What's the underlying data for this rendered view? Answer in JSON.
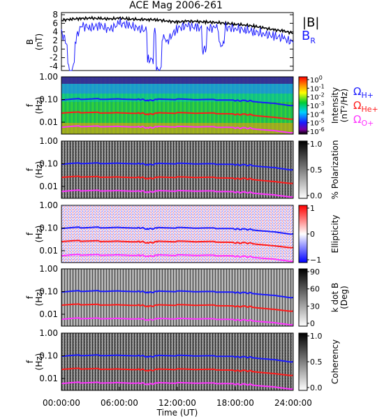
{
  "figure": {
    "title": "ACE Mag 2006-261",
    "xlabel": "Time (UT)",
    "xticks": [
      "00:00:00",
      "06:00:00",
      "12:00:00",
      "18:00:00",
      "24:00:00"
    ]
  },
  "legend": {
    "b_total": "|B|",
    "b_r_main": "B",
    "b_r_sub": "R",
    "omega": "Ω",
    "h_sub": "H+",
    "he_sub": "He+",
    "o_sub": "O+"
  },
  "colors": {
    "b_total": "#000000",
    "b_r": "#1a1aff",
    "omega_h": "#1a1aff",
    "omega_he": "#ff1a1a",
    "omega_o": "#ff33ff"
  },
  "chart_data": [
    {
      "type": "line",
      "ylabel_main": "B",
      "ylabel_sub": "(nT)",
      "x_range_hours": [
        0,
        24
      ],
      "ylim": [
        -5,
        8.5
      ],
      "yticks": [
        "8",
        "6",
        "4",
        "2",
        "0",
        "-2",
        "-4"
      ],
      "yticks_values": [
        8,
        6,
        4,
        2,
        0,
        -2,
        -4
      ],
      "series": [
        {
          "name": "|B|",
          "x": [
            0,
            1,
            2,
            3,
            4,
            5,
            6,
            7,
            8,
            9,
            10,
            11,
            12,
            13,
            14,
            15,
            16,
            17,
            18,
            19,
            20,
            21,
            22,
            23,
            24
          ],
          "values": [
            6.7,
            7.0,
            7.1,
            7.2,
            7.1,
            7.0,
            7.2,
            7.0,
            6.9,
            6.9,
            6.8,
            6.5,
            6.3,
            6.5,
            6.4,
            6.3,
            6.2,
            6.0,
            5.8,
            5.6,
            5.3,
            4.9,
            4.5,
            4.2,
            3.7
          ]
        },
        {
          "name": "B_R",
          "x": [
            0,
            1,
            2,
            3,
            4,
            5,
            6,
            7,
            8,
            9,
            10,
            11,
            12,
            13,
            14,
            15,
            16,
            17,
            18,
            19,
            20,
            21,
            22,
            23,
            24
          ],
          "values": [
            4.0,
            -1.0,
            5.5,
            5.0,
            5.5,
            4.5,
            6.0,
            5.5,
            4.8,
            4.2,
            3.5,
            2.0,
            4.8,
            5.5,
            5.0,
            4.8,
            5.0,
            5.0,
            4.8,
            4.5,
            4.0,
            3.5,
            3.0,
            2.5,
            1.5
          ]
        }
      ]
    },
    {
      "type": "heatmap",
      "ylabel_main": "f",
      "ylabel_sub": "(Hz)",
      "ylim": [
        0.003,
        1.0
      ],
      "yscale": "log",
      "yticks": [
        "1.00",
        "0.10",
        "0.01"
      ],
      "yticks_values": [
        1.0,
        0.1,
        0.01
      ],
      "colorbar": {
        "label_main": "Intensity",
        "label_sub": "(nT²/Hz)",
        "ticks_base": [
          "10",
          "10",
          "10",
          "10",
          "10",
          "10",
          "10"
        ],
        "ticks_exp": [
          "0",
          "-1",
          "-2",
          "-3",
          "-4",
          "-5",
          "-6"
        ],
        "ticks_values": [
          1,
          0.1,
          0.01,
          0.001,
          0.0001,
          1e-05,
          1e-06
        ],
        "colormap": "rainbow"
      }
    },
    {
      "type": "heatmap",
      "ylabel_main": "f",
      "ylabel_sub": "(Hz)",
      "ylim": [
        0.003,
        1.0
      ],
      "yscale": "log",
      "yticks": [
        "1.00",
        "0.10",
        "0.01"
      ],
      "yticks_values": [
        1.0,
        0.1,
        0.01
      ],
      "colorbar": {
        "label": "% Polarization",
        "ticks": [
          "1.0",
          "0.5",
          "0.0"
        ],
        "ticks_values": [
          1.0,
          0.5,
          0.0
        ],
        "colormap": "gray"
      }
    },
    {
      "type": "heatmap",
      "ylabel_main": "f",
      "ylabel_sub": "(Hz)",
      "ylim": [
        0.003,
        1.0
      ],
      "yscale": "log",
      "yticks": [
        "1.00",
        "0.10",
        "0.01"
      ],
      "yticks_values": [
        1.0,
        0.1,
        0.01
      ],
      "colorbar": {
        "label": "Ellipticity",
        "ticks": [
          "1",
          "0",
          "−1"
        ],
        "ticks_values": [
          1,
          0,
          -1
        ],
        "colormap": "blue-white-red"
      }
    },
    {
      "type": "heatmap",
      "ylabel_main": "f",
      "ylabel_sub": "(Hz)",
      "ylim": [
        0.003,
        1.0
      ],
      "yscale": "log",
      "yticks": [
        "1.00",
        "0.10",
        "0.01"
      ],
      "yticks_values": [
        1.0,
        0.1,
        0.01
      ],
      "colorbar": {
        "label_main": "k dot B",
        "label_sub": "(Deg)",
        "ticks": [
          "90",
          "60",
          "30",
          "0"
        ],
        "ticks_values": [
          90,
          60,
          30,
          0
        ],
        "colormap": "gray"
      }
    },
    {
      "type": "heatmap",
      "ylabel_main": "f",
      "ylabel_sub": "(Hz)",
      "ylim": [
        0.003,
        1.0
      ],
      "yscale": "log",
      "yticks": [
        "1.00",
        "0.10",
        "0.01"
      ],
      "yticks_values": [
        1.0,
        0.1,
        0.01
      ],
      "colorbar": {
        "label": "Coherency",
        "ticks": [
          "1.0",
          "0.5",
          "0.0"
        ],
        "ticks_values": [
          1.0,
          0.5,
          0.0
        ],
        "colormap": "gray"
      }
    }
  ],
  "gyrofrequency_curves": {
    "x": [
      0,
      2,
      4,
      6,
      8,
      9,
      10,
      12,
      14,
      16,
      18,
      19,
      20,
      22,
      24
    ],
    "omega_h": [
      0.095,
      0.105,
      0.108,
      0.11,
      0.105,
      0.09,
      0.1,
      0.1,
      0.095,
      0.095,
      0.09,
      0.088,
      0.085,
      0.07,
      0.055
    ],
    "omega_he": [
      0.025,
      0.027,
      0.027,
      0.027,
      0.026,
      0.022,
      0.025,
      0.025,
      0.024,
      0.024,
      0.022,
      0.022,
      0.021,
      0.017,
      0.014
    ],
    "omega_o": [
      0.006,
      0.0066,
      0.0067,
      0.0068,
      0.0065,
      0.0056,
      0.0063,
      0.0062,
      0.006,
      0.006,
      0.0056,
      0.0055,
      0.0053,
      0.0044,
      0.0035
    ]
  }
}
